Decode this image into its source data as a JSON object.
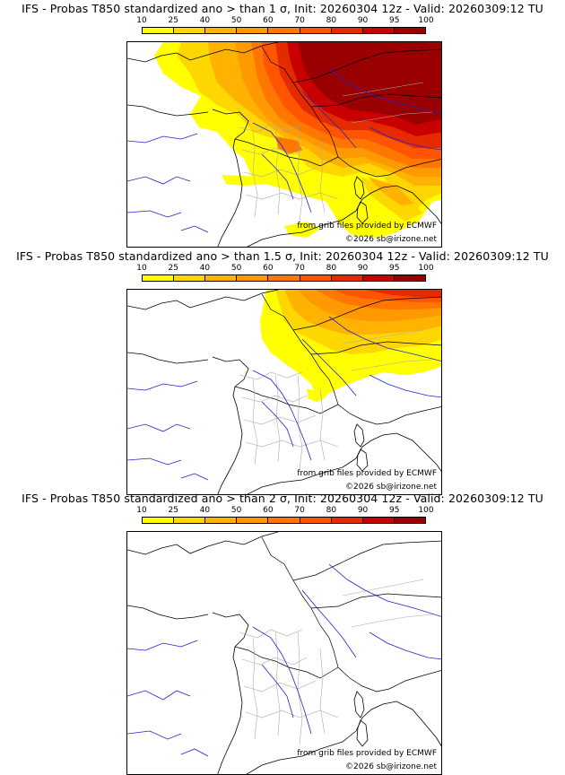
{
  "legend": {
    "ticks": [
      "10",
      "25",
      "40",
      "50",
      "60",
      "70",
      "80",
      "90",
      "95",
      "100"
    ],
    "colors": [
      "#ffff00",
      "#ffd700",
      "#ffb300",
      "#ff9900",
      "#ff7700",
      "#ff5500",
      "#e62a00",
      "#c80000",
      "#9a0000"
    ]
  },
  "map_colors": {
    "sea": "#ffffff",
    "coast": "#000000",
    "borders": "#000000",
    "regions": "#aaaaaa",
    "rivers": "#2222cc"
  },
  "credits": {
    "source": "from grib files provided by ECMWF",
    "copyright": "©2026 sb@irizone.net"
  },
  "panels": [
    {
      "title": "IFS - Probas T850  standardized ano > than 1 σ, Init: 20260304 12z - Valid: 20260309:12 TU",
      "threshold_sigma": 1,
      "probability_coverage": "high over central/northern Europe, max ≥95% over Germany and Low Countries"
    },
    {
      "title": "IFS - Probas T850  standardized ano > than 1.5 σ, Init: 20260304 12z - Valid: 20260309:12 TU",
      "threshold_sigma": 1.5,
      "probability_coverage": "moderate over NE France, Benelux and Germany, max ~80% in NE corner"
    },
    {
      "title": "IFS - Probas T850  standardized ano > than 2 σ, Init: 20260304 12z - Valid: 20260309:12 TU",
      "threshold_sigma": 2,
      "probability_coverage": "none above 10%"
    }
  ]
}
